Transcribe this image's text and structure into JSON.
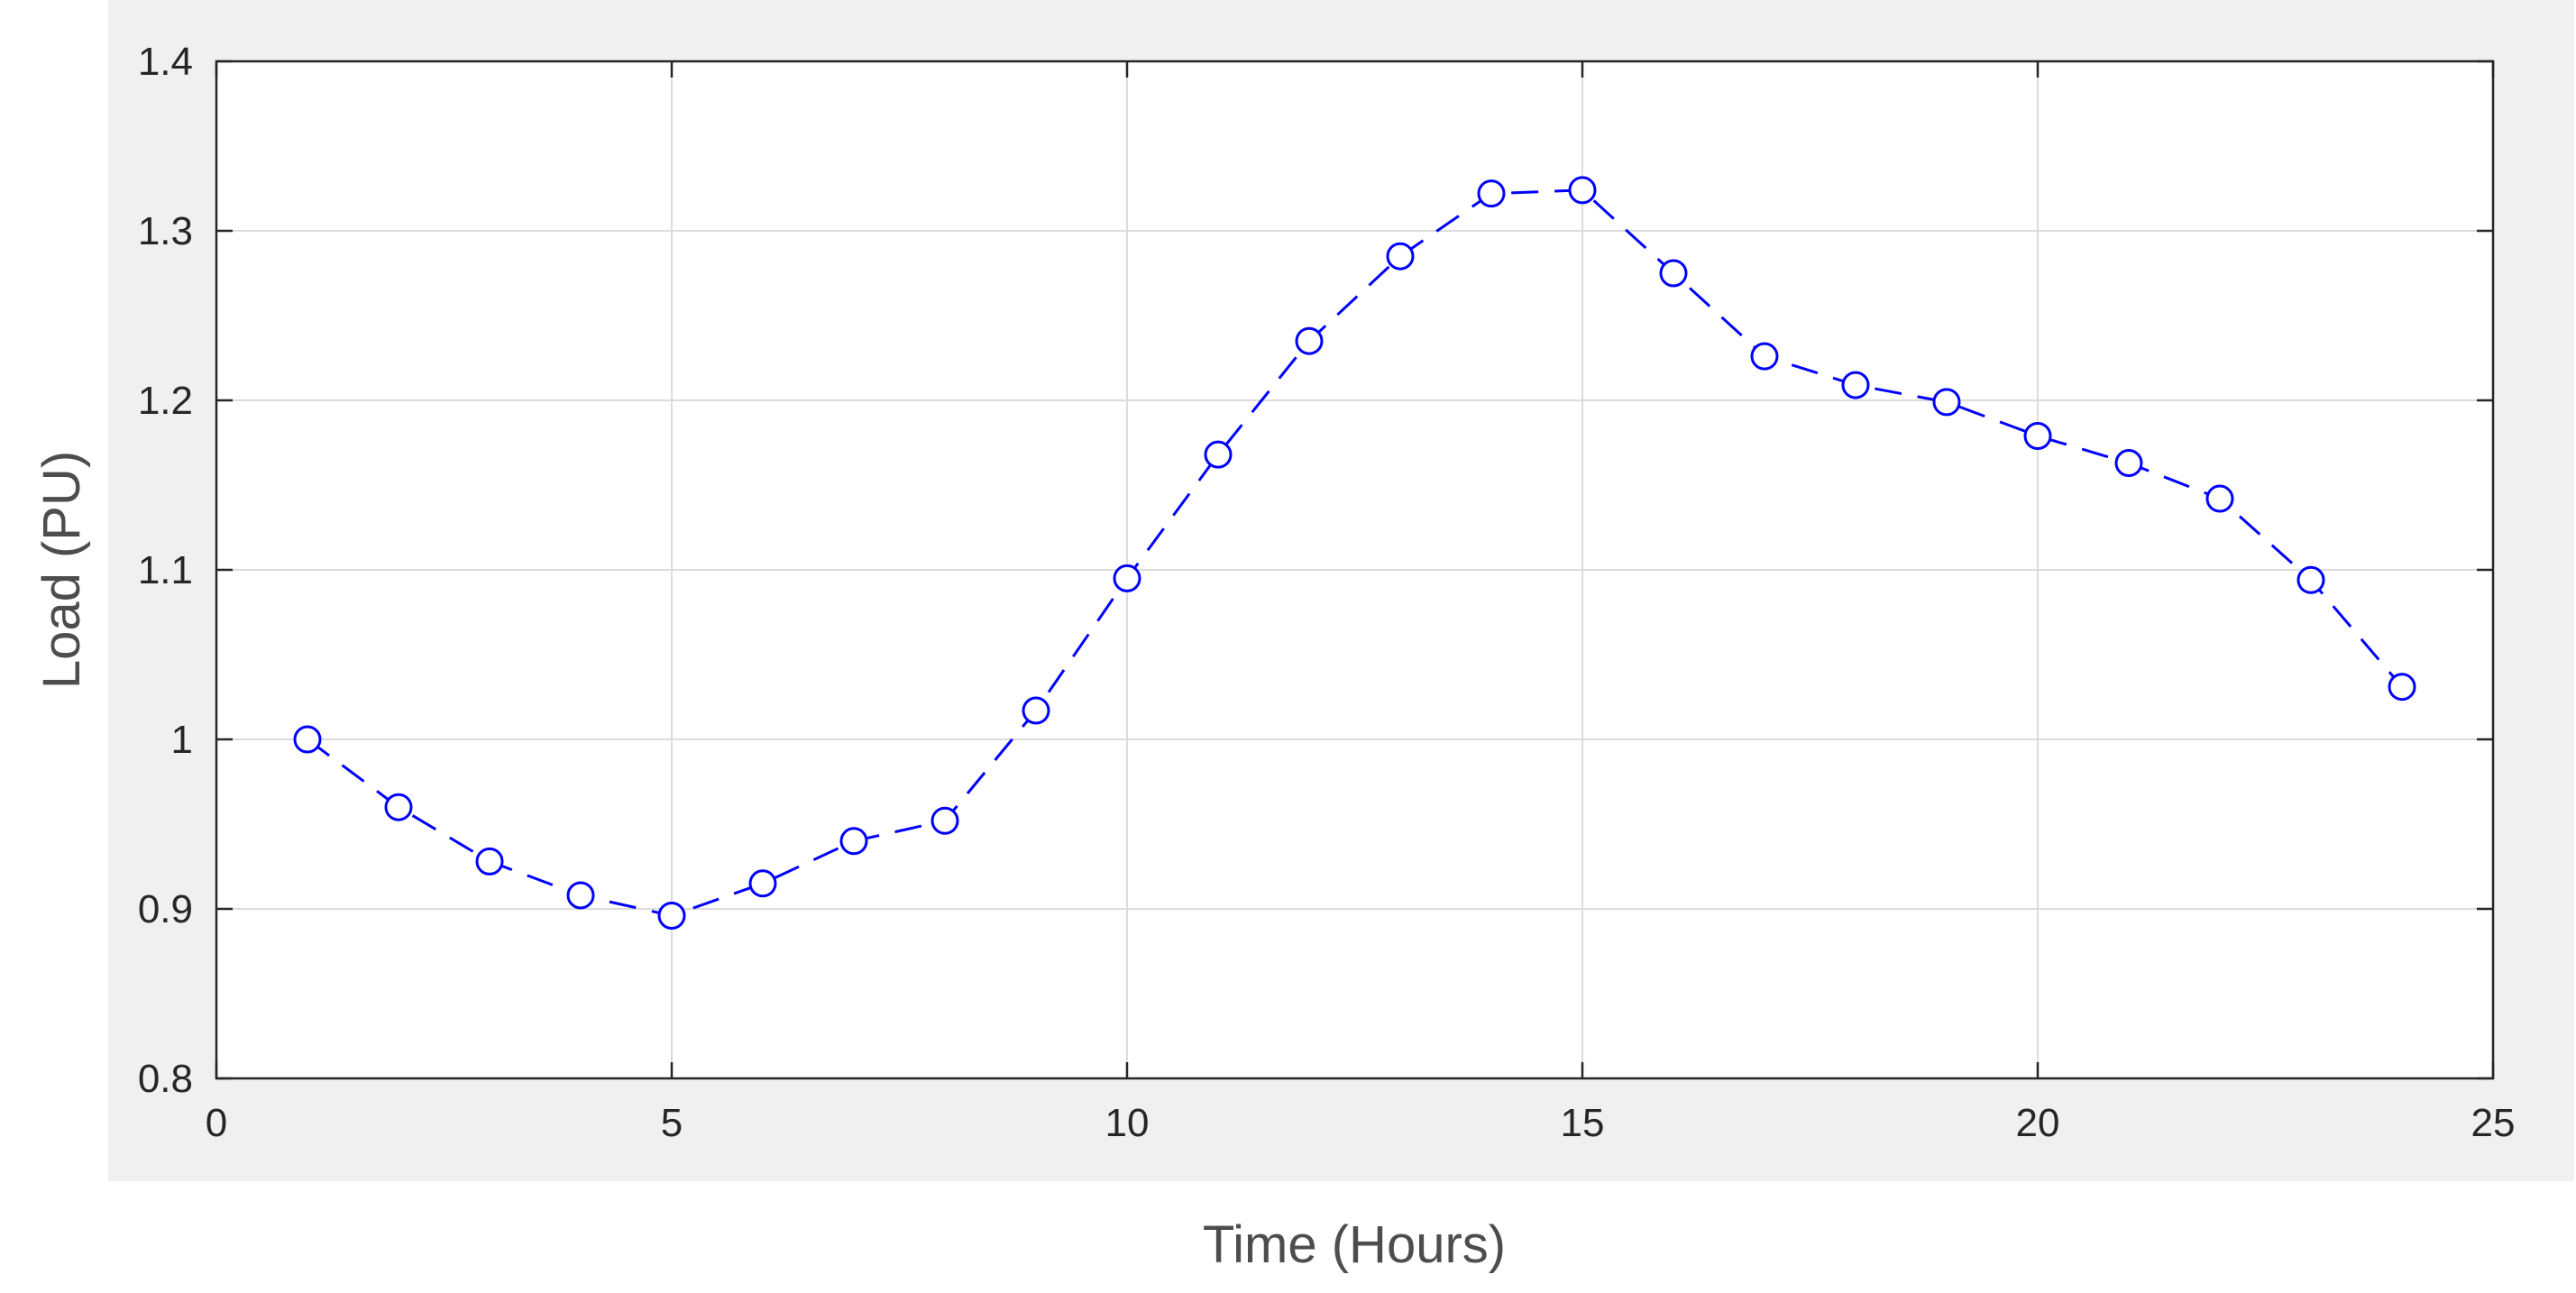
{
  "chart_data": {
    "type": "line",
    "title": "",
    "xlabel": "Time (Hours)",
    "ylabel": "Load (PU)",
    "xlim": [
      0,
      25
    ],
    "ylim": [
      0.8,
      1.4
    ],
    "x_ticks": [
      0,
      5,
      10,
      15,
      20,
      25
    ],
    "x_tick_labels": [
      "0",
      "5",
      "10",
      "15",
      "20",
      "25"
    ],
    "y_ticks": [
      0.8,
      0.9,
      1.0,
      1.1,
      1.2,
      1.3,
      1.4
    ],
    "y_tick_labels": [
      "0.8",
      "0.9",
      "1",
      "1.1",
      "1.2",
      "1.3",
      "1.4"
    ],
    "grid": true,
    "legend": "none",
    "series": [
      {
        "line_style": "dashed",
        "marker": "circle",
        "color": "#0000ff",
        "x": [
          1,
          2,
          3,
          4,
          5,
          6,
          7,
          8,
          9,
          10,
          11,
          12,
          13,
          14,
          15,
          16,
          17,
          18,
          19,
          20,
          21,
          22,
          23,
          24
        ],
        "y": [
          1.0,
          0.96,
          0.928,
          0.908,
          0.896,
          0.915,
          0.94,
          0.952,
          1.017,
          1.095,
          1.168,
          1.235,
          1.285,
          1.322,
          1.324,
          1.275,
          1.226,
          1.209,
          1.199,
          1.179,
          1.163,
          1.142,
          1.094,
          1.031
        ]
      }
    ]
  },
  "colors": {
    "figure_background": "#f0f0f0",
    "axes_background": "#ffffff",
    "axis_color": "#262626",
    "grid_color": "#dcdcdc",
    "label_color": "#4d4d4d"
  }
}
